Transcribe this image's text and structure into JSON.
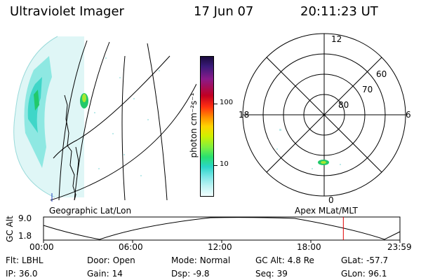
{
  "header": {
    "title": "Ultraviolet Imager",
    "date": "17 Jun 07",
    "time": "20:11:23 UT"
  },
  "colorbar": {
    "unit": "photon cm⁻²s⁻¹",
    "ticks": [
      "100",
      "10"
    ]
  },
  "polar_plot": {
    "mlt_labels": {
      "top": "12",
      "left": "18",
      "right": "6",
      "bottom": "0"
    },
    "lat_labels": [
      "60",
      "70",
      "80"
    ]
  },
  "labels": {
    "geographic": "Geographic Lat/Lon",
    "apex": "Apex MLat/MLT"
  },
  "orbit_plot": {
    "ylabel": "GC Alt",
    "ytick_top": "9.0",
    "ytick_bottom": "1.8",
    "time_ticks": [
      "00:00",
      "06:00",
      "12:00",
      "18:00",
      "23:59"
    ],
    "current_time_fraction": 0.8412
  },
  "info": {
    "flt_label": "Flt:",
    "flt_value": "LBHL",
    "door_label": "Door:",
    "door_value": "Open",
    "mode_label": "Mode:",
    "mode_value": "Normal",
    "gcalt_label": "GC Alt:",
    "gcalt_value": "4.8 Re",
    "glat_label": "GLat:",
    "glat_value": "-57.7",
    "ip_label": "IP:",
    "ip_value": "36.0",
    "gain_label": "Gain:",
    "gain_value": "14",
    "dsp_label": "Dsp:",
    "dsp_value": "-9.8",
    "seq_label": "Seq:",
    "seq_value": "39",
    "glon_label": "GLon:",
    "glon_value": "96.1"
  },
  "colors": {
    "marker": "#e00000",
    "aurora_green": "#22c96a",
    "aurora_cyan": "#3fd6c8"
  }
}
